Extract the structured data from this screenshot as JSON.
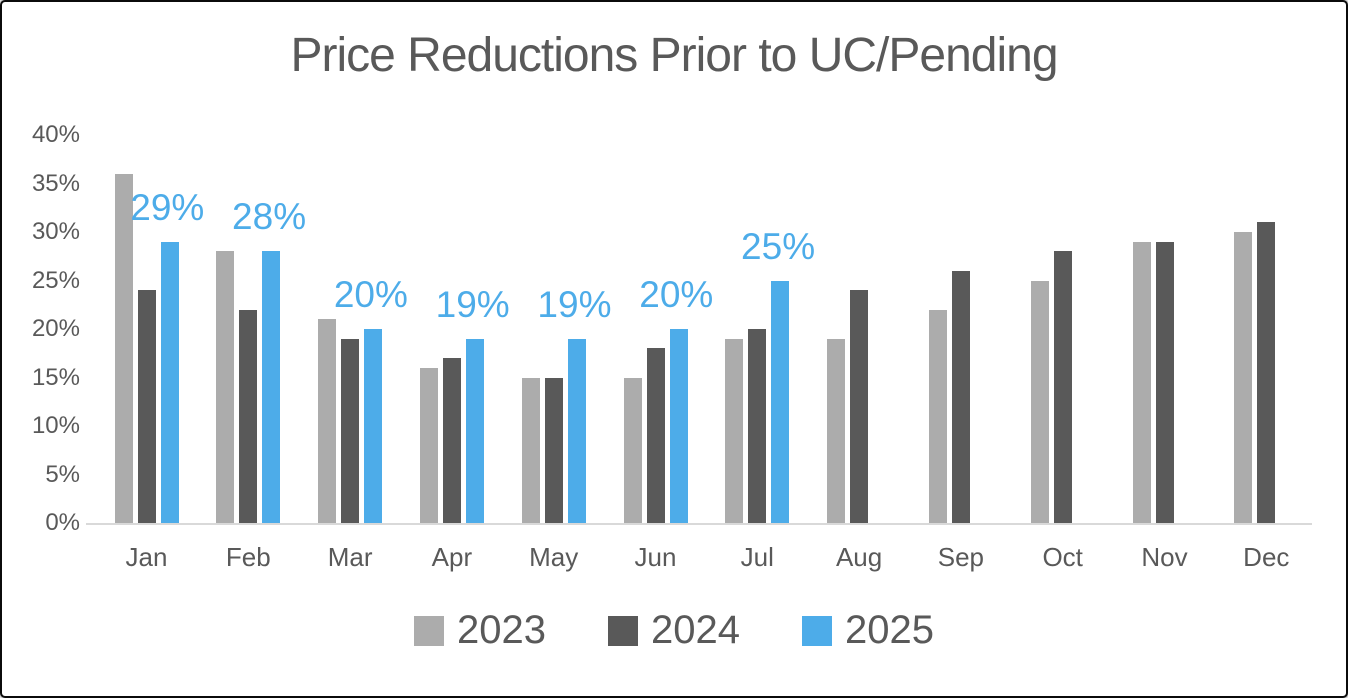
{
  "chart_data": {
    "type": "bar",
    "title": "Price Reductions Prior to UC/Pending",
    "categories": [
      "Jan",
      "Feb",
      "Mar",
      "Apr",
      "May",
      "Jun",
      "Jul",
      "Aug",
      "Sep",
      "Oct",
      "Nov",
      "Dec"
    ],
    "series": [
      {
        "name": "2023",
        "color": "#ACACAC",
        "values": [
          36,
          28,
          21,
          16,
          15,
          15,
          19,
          19,
          22,
          25,
          29,
          30
        ]
      },
      {
        "name": "2024",
        "color": "#595959",
        "values": [
          24,
          22,
          19,
          17,
          15,
          18,
          20,
          24,
          26,
          28,
          29,
          31
        ]
      },
      {
        "name": "2025",
        "color": "#4DACE9",
        "values": [
          29,
          28,
          20,
          19,
          19,
          20,
          25,
          null,
          null,
          null,
          null,
          null
        ],
        "data_labels": [
          "29%",
          "28%",
          "20%",
          "19%",
          "19%",
          "20%",
          "25%",
          null,
          null,
          null,
          null,
          null
        ]
      }
    ],
    "xlabel": "",
    "ylabel": "",
    "ylim": [
      0,
      40
    ],
    "ytick_step": 5,
    "ytick_labels": [
      "0%",
      "5%",
      "10%",
      "15%",
      "20%",
      "25%",
      "30%",
      "35%",
      "40%"
    ],
    "grid": false,
    "legend_position": "bottom",
    "colors": {
      "text": "#595959",
      "axis_line": "#D9D9D9",
      "data_label": "#4DACE9",
      "background": "#FFFFFF",
      "border": "#000000"
    }
  }
}
